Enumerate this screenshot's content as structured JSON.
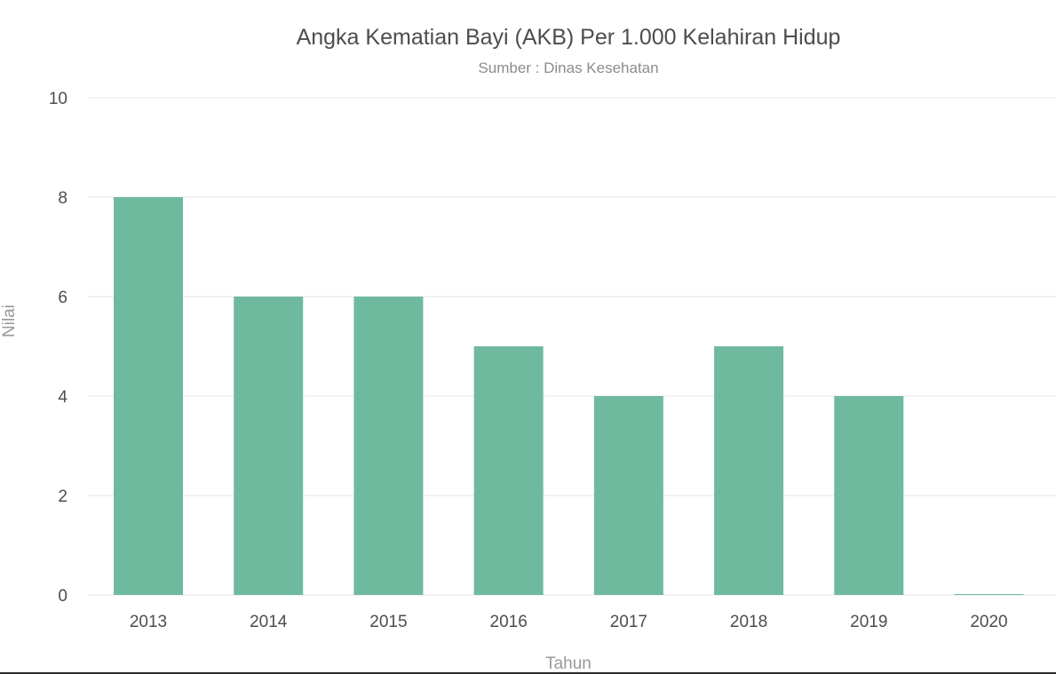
{
  "chart_data": {
    "type": "bar",
    "title": "Angka Kematian Bayi (AKB) Per 1.000 Kelahiran Hidup",
    "subtitle": "Sumber : Dinas Kesehatan",
    "xlabel": "Tahun",
    "ylabel": "Nilai",
    "categories": [
      "2013",
      "2014",
      "2015",
      "2016",
      "2017",
      "2018",
      "2019",
      "2020"
    ],
    "values": [
      8,
      6,
      6,
      5,
      4,
      5,
      4,
      0
    ],
    "ylim": [
      0,
      10
    ],
    "yticks": [
      0,
      2,
      4,
      6,
      8,
      10
    ],
    "grid": true,
    "legend": "none",
    "colors": {
      "bar": "#6fba9f",
      "grid": "#e6e6e6",
      "tick_text": "#4d4d4d"
    }
  }
}
